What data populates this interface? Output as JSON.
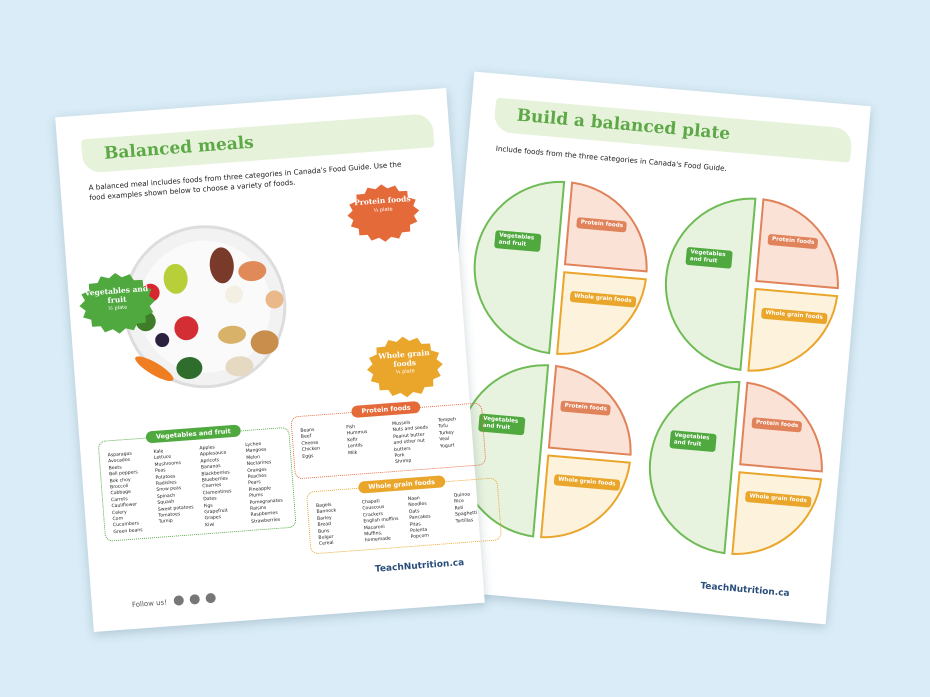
{
  "left_page": {
    "title": "Balanced meals",
    "intro": "A balanced meal includes foods from three categories in Canada's Food Guide. Use the food examples shown below to choose a variety of foods.",
    "badges": [
      {
        "label": "Vegetables and fruit",
        "portion": "½ plate"
      },
      {
        "label": "Protein foods",
        "portion": "¼ plate"
      },
      {
        "label": "Whole grain foods",
        "portion": "¼ plate"
      }
    ],
    "lists": [
      {
        "heading": "Vegetables and fruit",
        "columns": [
          [
            "Asparagus",
            "Avocados",
            "Beets",
            "Bell peppers",
            "Bok choy",
            "Broccoli",
            "Cabbage",
            "Carrots",
            "Cauliflower",
            "Celery",
            "Corn",
            "Cucumbers",
            "Green beans"
          ],
          [
            "Kale",
            "Lettuce",
            "Mushrooms",
            "Peas",
            "Potatoes",
            "Radishes",
            "Snow peas",
            "Spinach",
            "Squash",
            "Sweet potatoes",
            "Tomatoes",
            "Turnip"
          ],
          [
            "Apples",
            "Applesauce",
            "Apricots",
            "Bananas",
            "Blackberries",
            "Blueberries",
            "Cherries",
            "Clementines",
            "Dates",
            "Figs",
            "Grapefruit",
            "Grapes",
            "Kiwi"
          ],
          [
            "Lychee",
            "Mangoes",
            "Melon",
            "Nectarines",
            "Oranges",
            "Peaches",
            "Pears",
            "Pineapple",
            "Plums",
            "Pomegranates",
            "Raisins",
            "Raspberries",
            "Strawberries"
          ]
        ]
      },
      {
        "heading": "Protein foods",
        "columns": [
          [
            "Beans",
            "Beef",
            "Cheese",
            "Chicken",
            "Eggs"
          ],
          [
            "Fish",
            "Hummus",
            "Kefir",
            "Lentils",
            "Milk"
          ],
          [
            "Mussels",
            "Nuts and seeds",
            "Peanut butter and other nut butters",
            "Pork",
            "Shrimp"
          ],
          [
            "Tempeh",
            "Tofu",
            "Turkey",
            "Veal",
            "Yogurt"
          ]
        ]
      },
      {
        "heading": "Whole grain foods",
        "columns": [
          [
            "Bagels",
            "Bannock",
            "Barley",
            "Bread",
            "Buns",
            "Bulgur",
            "Cereal"
          ],
          [
            "Chapati",
            "Couscous",
            "Crackers",
            "English muffins",
            "Macaroni",
            "Muffins, homemade"
          ],
          [
            "Naan",
            "Noodles",
            "Oats",
            "Pancakes",
            "Pitas",
            "Polenta",
            "Popcorn"
          ],
          [
            "Quinoa",
            "Rice",
            "Roti",
            "Spaghetti",
            "Tortillas"
          ]
        ]
      }
    ],
    "follow_label": "Follow us!",
    "logo": "TeachNutrition.ca"
  },
  "right_page": {
    "title": "Build a balanced plate",
    "instruction": "Include foods from the three categories in Canada's Food Guide.",
    "plates": [
      {
        "vegetables": "Vegetables and fruit",
        "protein": "Protein foods",
        "grains": "Whole grain foods"
      },
      {
        "vegetables": "Vegetables and fruit",
        "protein": "Protein foods",
        "grains": "Whole grain foods"
      },
      {
        "vegetables": "Vegetables and fruit",
        "protein": "Protein foods",
        "grains": "Whole grain foods"
      },
      {
        "vegetables": "Vegetables and fruit",
        "protein": "Protein foods",
        "grains": "Whole grain foods"
      }
    ],
    "logo": "TeachNutrition.ca"
  }
}
